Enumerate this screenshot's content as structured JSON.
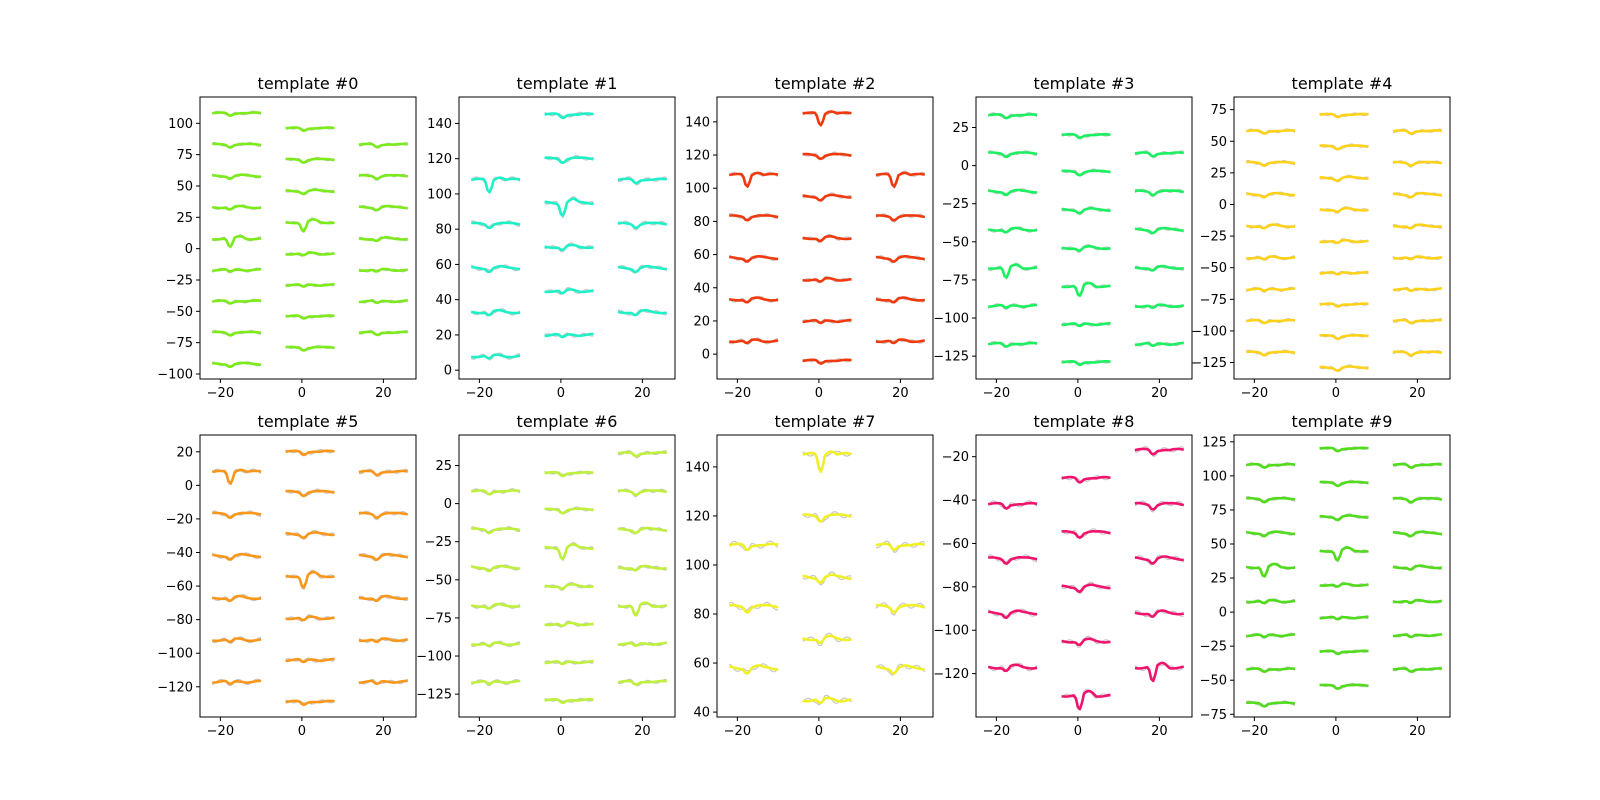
{
  "chart_data": [
    {
      "type": "line",
      "title": "template #0",
      "color": "#7CEB1A",
      "xlim": [
        -25,
        28
      ],
      "ylim": [
        -104,
        121
      ],
      "xticks": [
        -20,
        0,
        20
      ],
      "yticks": [
        -100,
        -75,
        -50,
        -25,
        0,
        25,
        50,
        75,
        100
      ],
      "columns": [
        {
          "x": [
            -22,
            -10
          ],
          "offsets": [
            108,
            83,
            58,
            33,
            8,
            -17,
            -42,
            -67,
            -92
          ],
          "dip_row": 4
        },
        {
          "x": [
            -4,
            8
          ],
          "offsets": [
            96,
            71,
            46,
            21,
            -4,
            -29,
            -54,
            -79
          ],
          "dip_row": 3
        },
        {
          "x": [
            14,
            26
          ],
          "offsets": [
            83,
            58,
            33,
            8,
            -17,
            -42,
            -67
          ],
          "dip_row": -1
        }
      ]
    },
    {
      "type": "line",
      "title": "template #1",
      "color": "#1EF0C8",
      "xlim": [
        -25,
        28
      ],
      "ylim": [
        -5,
        155
      ],
      "xticks": [
        -20,
        0,
        20
      ],
      "yticks": [
        0,
        20,
        40,
        60,
        80,
        100,
        120,
        140
      ],
      "columns": [
        {
          "x": [
            -22,
            -10
          ],
          "offsets": [
            108,
            83,
            58,
            33,
            8
          ],
          "dip_row": 0
        },
        {
          "x": [
            -4,
            8
          ],
          "offsets": [
            145,
            120,
            95,
            70,
            45,
            20
          ],
          "dip_row": 2
        },
        {
          "x": [
            14,
            26
          ],
          "offsets": [
            108,
            83,
            58,
            33
          ],
          "dip_row": -1
        }
      ]
    },
    {
      "type": "line",
      "title": "template #2",
      "color": "#F03A0E",
      "xlim": [
        -25,
        28
      ],
      "ylim": [
        -15,
        155
      ],
      "xticks": [
        -20,
        0,
        20
      ],
      "yticks": [
        0,
        20,
        40,
        60,
        80,
        100,
        120,
        140
      ],
      "columns": [
        {
          "x": [
            -22,
            -10
          ],
          "offsets": [
            108,
            83,
            58,
            33,
            8
          ],
          "dip_row": 0
        },
        {
          "x": [
            -4,
            8
          ],
          "offsets": [
            145,
            120,
            95,
            70,
            45,
            20,
            -4
          ],
          "dip_row": 0
        },
        {
          "x": [
            14,
            26
          ],
          "offsets": [
            108,
            83,
            58,
            33,
            8
          ],
          "dip_row": 0
        }
      ]
    },
    {
      "type": "line",
      "title": "template #3",
      "color": "#1AF060",
      "xlim": [
        -25,
        28
      ],
      "ylim": [
        -140,
        45
      ],
      "xticks": [
        -20,
        0,
        20
      ],
      "yticks": [
        -125,
        -100,
        -75,
        -50,
        -25,
        0,
        25
      ],
      "columns": [
        {
          "x": [
            -22,
            -10
          ],
          "offsets": [
            33,
            8,
            -17,
            -42,
            -67,
            -92,
            -117
          ],
          "dip_row": 4
        },
        {
          "x": [
            -4,
            8
          ],
          "offsets": [
            20,
            -4,
            -29,
            -54,
            -79,
            -104,
            -129
          ],
          "dip_row": 4
        },
        {
          "x": [
            14,
            26
          ],
          "offsets": [
            8,
            -17,
            -42,
            -67,
            -92,
            -117
          ],
          "dip_row": -1
        }
      ]
    },
    {
      "type": "line",
      "title": "template #4",
      "color": "#FFD21A",
      "xlim": [
        -25,
        28
      ],
      "ylim": [
        -138,
        85
      ],
      "xticks": [
        -20,
        0,
        20
      ],
      "yticks": [
        -125,
        -100,
        -75,
        -50,
        -25,
        0,
        25,
        50,
        75
      ],
      "columns": [
        {
          "x": [
            -22,
            -10
          ],
          "offsets": [
            58,
            33,
            8,
            -17,
            -42,
            -67,
            -92,
            -117
          ],
          "dip_row": -1
        },
        {
          "x": [
            -4,
            8
          ],
          "offsets": [
            71,
            46,
            21,
            -4,
            -29,
            -54,
            -79,
            -104,
            -129
          ],
          "dip_row": -1
        },
        {
          "x": [
            14,
            26
          ],
          "offsets": [
            58,
            33,
            8,
            -17,
            -42,
            -67,
            -92,
            -117
          ],
          "dip_row": -1
        }
      ]
    },
    {
      "type": "line",
      "title": "template #5",
      "color": "#FA961A",
      "xlim": [
        -25,
        28
      ],
      "ylim": [
        -138,
        30
      ],
      "xticks": [
        -20,
        0,
        20
      ],
      "yticks": [
        -120,
        -100,
        -80,
        -60,
        -40,
        -20,
        0,
        20
      ],
      "columns": [
        {
          "x": [
            -22,
            -10
          ],
          "offsets": [
            8,
            -17,
            -42,
            -67,
            -92,
            -117
          ],
          "dip_row": 0
        },
        {
          "x": [
            -4,
            8
          ],
          "offsets": [
            20,
            -4,
            -29,
            -54,
            -79,
            -104,
            -129
          ],
          "dip_row": 3
        },
        {
          "x": [
            14,
            26
          ],
          "offsets": [
            8,
            -17,
            -42,
            -67,
            -92,
            -117
          ],
          "dip_row": -1
        }
      ]
    },
    {
      "type": "line",
      "title": "template #6",
      "color": "#BEF03C",
      "xlim": [
        -25,
        28
      ],
      "ylim": [
        -140,
        45
      ],
      "xticks": [
        -20,
        0,
        20
      ],
      "yticks": [
        -125,
        -100,
        -75,
        -50,
        -25,
        0,
        25
      ],
      "columns": [
        {
          "x": [
            -22,
            -10
          ],
          "offsets": [
            8,
            -17,
            -42,
            -67,
            -92,
            -117
          ],
          "dip_row": -1
        },
        {
          "x": [
            -4,
            8
          ],
          "offsets": [
            20,
            -4,
            -29,
            -54,
            -79,
            -104,
            -129
          ],
          "dip_row": 2
        },
        {
          "x": [
            14,
            26
          ],
          "offsets": [
            33,
            8,
            -17,
            -42,
            -67,
            -92,
            -117
          ],
          "dip_row": 4
        }
      ]
    },
    {
      "type": "line",
      "title": "template #7",
      "color": "#F0F028",
      "xlim": [
        -25,
        28
      ],
      "ylim": [
        38,
        153
      ],
      "xticks": [
        -20,
        0,
        20
      ],
      "yticks": [
        40,
        60,
        80,
        100,
        120,
        140
      ],
      "columns": [
        {
          "x": [
            -22,
            -10
          ],
          "offsets": [
            108,
            83,
            58
          ],
          "dip_row": -1
        },
        {
          "x": [
            -4,
            8
          ],
          "offsets": [
            145,
            120,
            95,
            70,
            45
          ],
          "dip_row": 0
        },
        {
          "x": [
            14,
            26
          ],
          "offsets": [
            108,
            83,
            58
          ],
          "dip_row": -1
        }
      ]
    },
    {
      "type": "line",
      "title": "template #8",
      "color": "#F0146E",
      "xlim": [
        -25,
        28
      ],
      "ylim": [
        -140,
        -10
      ],
      "xticks": [
        -20,
        0,
        20
      ],
      "yticks": [
        -120,
        -100,
        -80,
        -60,
        -40,
        -20
      ],
      "columns": [
        {
          "x": [
            -22,
            -10
          ],
          "offsets": [
            -42,
            -67,
            -92,
            -117
          ],
          "dip_row": -1
        },
        {
          "x": [
            -4,
            8
          ],
          "offsets": [
            -30,
            -55,
            -80,
            -105,
            -130
          ],
          "dip_row": 4
        },
        {
          "x": [
            14,
            26
          ],
          "offsets": [
            -17,
            -42,
            -67,
            -92,
            -117
          ],
          "dip_row": 4
        }
      ]
    },
    {
      "type": "line",
      "title": "template #9",
      "color": "#50DC1A",
      "xlim": [
        -25,
        28
      ],
      "ylim": [
        -77,
        130
      ],
      "xticks": [
        -20,
        0,
        20
      ],
      "yticks": [
        -75,
        -50,
        -25,
        0,
        25,
        50,
        75,
        100,
        125
      ],
      "columns": [
        {
          "x": [
            -22,
            -10
          ],
          "offsets": [
            108,
            83,
            58,
            33,
            8,
            -17,
            -42,
            -67
          ],
          "dip_row": 3
        },
        {
          "x": [
            -4,
            8
          ],
          "offsets": [
            120,
            95,
            70,
            45,
            20,
            -4,
            -29,
            -54
          ],
          "dip_row": 3
        },
        {
          "x": [
            14,
            26
          ],
          "offsets": [
            108,
            83,
            58,
            33,
            8,
            -17,
            -42
          ],
          "dip_row": -1
        }
      ]
    }
  ]
}
